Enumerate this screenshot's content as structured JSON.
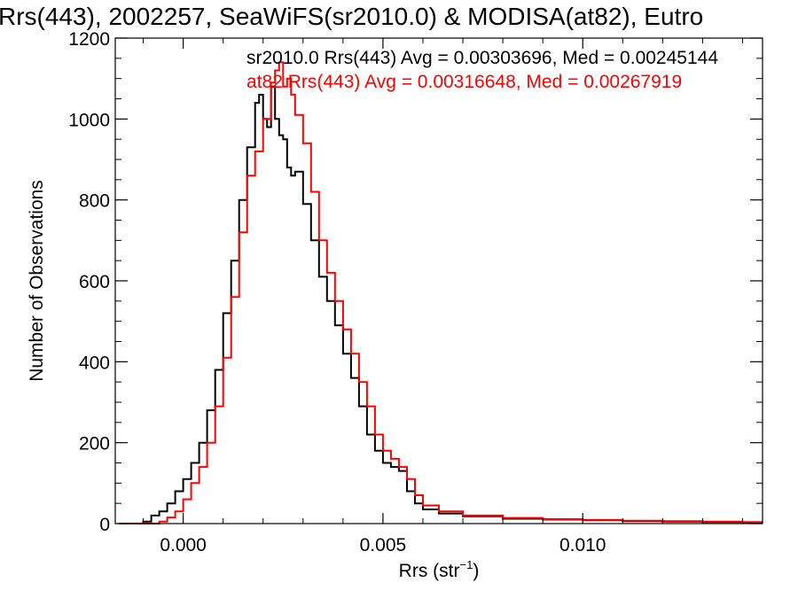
{
  "chart_data": {
    "type": "line",
    "title": "Rrs(443), 2002257, SeaWiFS(sr2010.0) & MODISA(at82), Eutro",
    "xlabel_main": "Rrs (str",
    "xlabel_sup": "−1",
    "xlabel_close": ")",
    "ylabel": "Number of Observations",
    "xlim": [
      -0.0017,
      0.0145
    ],
    "ylim": [
      0,
      1200
    ],
    "xticks": [
      0.0,
      0.005,
      0.01
    ],
    "xtick_labels": [
      "0.000",
      "0.005",
      "0.010"
    ],
    "yticks": [
      0,
      200,
      400,
      600,
      800,
      1000,
      1200
    ],
    "ytick_labels": [
      "0",
      "200",
      "400",
      "600",
      "800",
      "1000",
      "1200"
    ],
    "grid": false,
    "legend": [
      {
        "text": "sr2010.0 Rrs(443) Avg = 0.00303696, Med = 0.00245144",
        "color": "#000000"
      },
      {
        "text": "at82 Rrs(443) Avg = 0.00316648, Med = 0.00267919",
        "color": "#ff0000"
      }
    ],
    "series": [
      {
        "color": "#000000",
        "x": [
          -0.0016,
          -0.0012,
          -0.001,
          -0.0008,
          -0.0006,
          -0.0004,
          -0.0002,
          0.0,
          0.0002,
          0.0004,
          0.0006,
          0.0008,
          0.001,
          0.0012,
          0.0014,
          0.0016,
          0.0018,
          0.0019,
          0.002,
          0.0021,
          0.0022,
          0.0023,
          0.0024,
          0.0025,
          0.0026,
          0.0027,
          0.0028,
          0.003,
          0.0032,
          0.0034,
          0.0036,
          0.0038,
          0.004,
          0.0042,
          0.0044,
          0.0046,
          0.0048,
          0.005,
          0.0052,
          0.0054,
          0.0056,
          0.0058,
          0.006,
          0.0064,
          0.007,
          0.008,
          0.009,
          0.01,
          0.011,
          0.012,
          0.013,
          0.014
        ],
        "y": [
          0,
          0,
          5,
          20,
          30,
          50,
          80,
          110,
          150,
          200,
          280,
          380,
          520,
          650,
          800,
          930,
          1040,
          1060,
          1000,
          980,
          1080,
          1000,
          960,
          950,
          880,
          860,
          870,
          790,
          700,
          610,
          550,
          490,
          420,
          360,
          290,
          220,
          180,
          150,
          140,
          130,
          80,
          50,
          35,
          25,
          18,
          12,
          10,
          8,
          6,
          5,
          4,
          3
        ]
      },
      {
        "color": "#ff0000",
        "x": [
          -0.0016,
          -0.001,
          -0.0008,
          -0.0006,
          -0.0004,
          -0.0002,
          0.0,
          0.0002,
          0.0004,
          0.0006,
          0.0008,
          0.001,
          0.0012,
          0.0014,
          0.0016,
          0.0018,
          0.002,
          0.0022,
          0.0023,
          0.0024,
          0.0025,
          0.0026,
          0.0027,
          0.0028,
          0.003,
          0.0032,
          0.0034,
          0.0036,
          0.0038,
          0.004,
          0.0042,
          0.0044,
          0.0046,
          0.0048,
          0.005,
          0.0052,
          0.0054,
          0.0056,
          0.0058,
          0.006,
          0.0064,
          0.007,
          0.008,
          0.009,
          0.01,
          0.011,
          0.012,
          0.013,
          0.014
        ],
        "y": [
          0,
          0,
          0,
          5,
          15,
          30,
          60,
          100,
          140,
          200,
          290,
          410,
          560,
          720,
          860,
          920,
          1000,
          1090,
          1120,
          1140,
          1080,
          1100,
          1060,
          1010,
          940,
          820,
          700,
          620,
          550,
          480,
          420,
          350,
          290,
          220,
          180,
          160,
          140,
          110,
          70,
          45,
          30,
          20,
          14,
          11,
          9,
          7,
          6,
          5,
          4
        ]
      }
    ]
  }
}
